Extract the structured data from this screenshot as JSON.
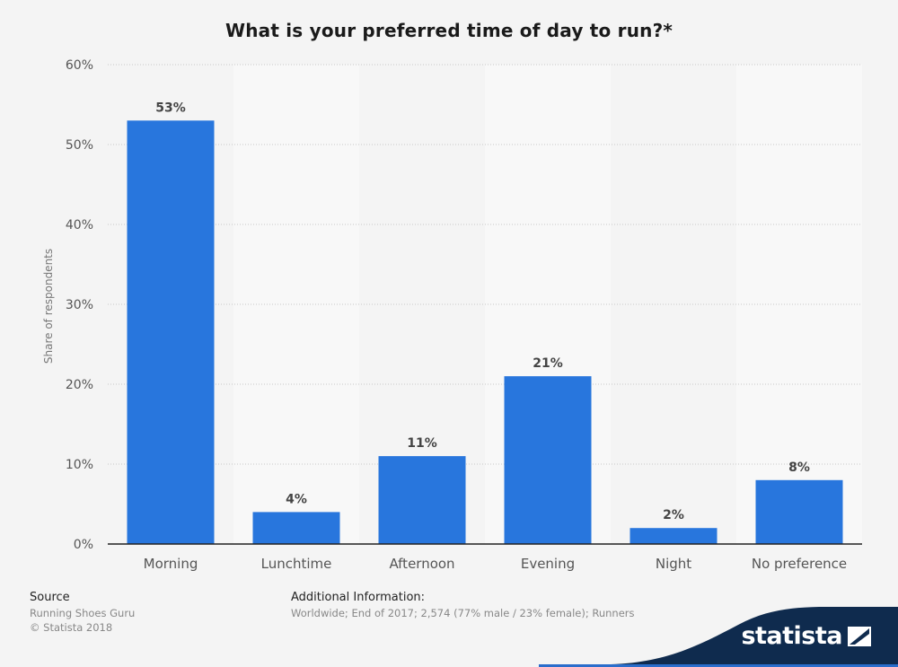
{
  "chart_data": {
    "type": "bar",
    "title": "What is your preferred time of day to run?*",
    "ylabel": "Share of respondents",
    "xlabel": "",
    "categories": [
      "Morning",
      "Lunchtime",
      "Afternoon",
      "Evening",
      "Night",
      "No preference"
    ],
    "values": [
      53,
      4,
      11,
      21,
      2,
      8
    ],
    "value_labels": [
      "53%",
      "4%",
      "11%",
      "21%",
      "2%",
      "8%"
    ],
    "ylim": [
      0,
      60
    ],
    "yticks": [
      0,
      10,
      20,
      30,
      40,
      50,
      60
    ],
    "ytick_labels": [
      "0%",
      "10%",
      "20%",
      "30%",
      "40%",
      "50%",
      "60%"
    ],
    "grid": true,
    "bar_color": "#2876dd"
  },
  "footer": {
    "source_heading": "Source",
    "source_name": "Running Shoes Guru",
    "copyright": "© Statista 2018",
    "info_heading": "Additional Information:",
    "info_text": "Worldwide; End of 2017; 2,574 (77% male / 23% female); Runners"
  },
  "brand": {
    "name": "statista",
    "wave_color": "#0f2b4e",
    "accent_color": "#2a6dcb"
  }
}
